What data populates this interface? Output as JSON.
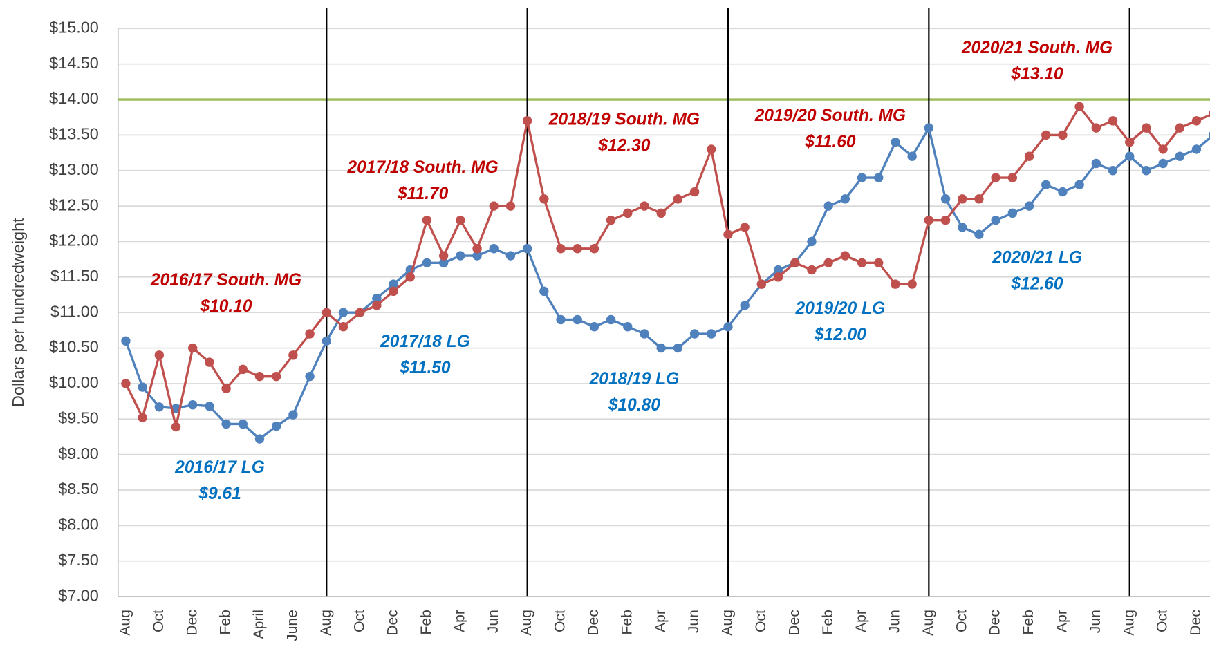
{
  "chart_data": {
    "type": "line",
    "y_label": "Dollars per hundredweight",
    "categories": [
      "Aug",
      null,
      "Oct",
      null,
      "Dec",
      null,
      "Feb",
      null,
      "April",
      null,
      "June",
      null,
      "Aug",
      null,
      "Oct",
      null,
      "Dec",
      null,
      "Feb",
      null,
      "Apr",
      null,
      "Jun",
      null,
      "Aug",
      null,
      "Oct",
      null,
      "Dec",
      null,
      "Feb",
      null,
      "Apr",
      null,
      "Jun",
      null,
      "Aug",
      null,
      "Oct",
      null,
      "Dec",
      null,
      "Feb",
      null,
      "Apr",
      null,
      "Jun",
      null,
      "Aug",
      null,
      "Oct",
      null,
      "Dec",
      null,
      "Feb",
      null,
      "Apr",
      null,
      "Jun",
      null,
      "Aug",
      null,
      "Oct",
      null,
      "Dec",
      null
    ],
    "series": [
      {
        "color": "#4f81bd",
        "values": [
          10.6,
          9.95,
          9.67,
          9.65,
          9.7,
          9.68,
          9.43,
          9.43,
          9.22,
          9.4,
          9.56,
          10.1,
          10.6,
          11.0,
          11.0,
          11.2,
          11.4,
          11.6,
          11.7,
          11.7,
          11.8,
          11.8,
          11.9,
          11.8,
          11.9,
          11.3,
          10.9,
          10.9,
          10.8,
          10.9,
          10.8,
          10.7,
          10.5,
          10.5,
          10.7,
          10.7,
          10.8,
          11.1,
          11.4,
          11.6,
          11.7,
          12.0,
          12.5,
          12.6,
          12.9,
          12.9,
          13.4,
          13.2,
          13.6,
          12.6,
          12.2,
          12.1,
          12.3,
          12.4,
          12.5,
          12.8,
          12.7,
          12.8,
          13.1,
          13.0,
          13.2,
          13.0,
          13.1,
          13.2,
          13.3,
          13.5
        ]
      },
      {
        "color": "#c0504d",
        "values": [
          10.0,
          9.52,
          10.4,
          9.39,
          10.5,
          10.3,
          9.93,
          10.2,
          10.1,
          10.1,
          10.4,
          10.7,
          11.0,
          10.8,
          11.0,
          11.1,
          11.3,
          11.5,
          12.3,
          11.8,
          12.3,
          11.9,
          12.5,
          12.5,
          13.7,
          12.6,
          11.9,
          11.9,
          11.9,
          12.3,
          12.4,
          12.5,
          12.4,
          12.6,
          12.7,
          13.3,
          12.1,
          12.2,
          11.4,
          11.5,
          11.7,
          11.6,
          11.7,
          11.8,
          11.7,
          11.7,
          11.4,
          11.4,
          12.3,
          12.3,
          12.6,
          12.6,
          12.9,
          12.9,
          13.2,
          13.5,
          13.5,
          13.9,
          13.6,
          13.7,
          13.4,
          13.6,
          13.3,
          13.6,
          13.7,
          13.8
        ]
      }
    ],
    "reference_line": {
      "value": 14.0,
      "color": "#9bbb59"
    },
    "ylim": [
      7,
      15
    ],
    "yticks": [
      {
        "value": 7,
        "label": "$7.00"
      },
      {
        "value": 7.5,
        "label": "$7.50"
      },
      {
        "value": 8,
        "label": "$8.00"
      },
      {
        "value": 8.5,
        "label": "$8.50"
      },
      {
        "value": 9,
        "label": "$9.00"
      },
      {
        "value": 9.5,
        "label": "$9.50"
      },
      {
        "value": 10,
        "label": "$10.00"
      },
      {
        "value": 10.5,
        "label": "$10.50"
      },
      {
        "value": 11,
        "label": "$11.00"
      },
      {
        "value": 11.5,
        "label": "$11.50"
      },
      {
        "value": 12,
        "label": "$12.00"
      },
      {
        "value": 12.5,
        "label": "$12.50"
      },
      {
        "value": 13,
        "label": "$13.00"
      },
      {
        "value": 13.5,
        "label": "$13.50"
      },
      {
        "value": 14,
        "label": "$14.00"
      },
      {
        "value": 14.5,
        "label": "$14.50"
      },
      {
        "value": 15,
        "label": "$15.00"
      }
    ],
    "grid": true,
    "annotations": [
      {
        "lines": [
          "2016/17 South. MG",
          "$10.10"
        ],
        "color": "#c00000"
      },
      {
        "lines": [
          "2016/17 LG",
          "$9.61"
        ],
        "color": "#0070c0"
      },
      {
        "lines": [
          "2017/18 South. MG",
          "$11.70"
        ],
        "color": "#c00000"
      },
      {
        "lines": [
          "2017/18 LG",
          "$11.50"
        ],
        "color": "#0070c0"
      },
      {
        "lines": [
          "2018/19 South. MG",
          "$12.30"
        ],
        "color": "#c00000"
      },
      {
        "lines": [
          "2018/19 LG",
          "$10.80"
        ],
        "color": "#0070c0"
      },
      {
        "lines": [
          "2019/20 South. MG",
          "$11.60"
        ],
        "color": "#c00000"
      },
      {
        "lines": [
          "2019/20 LG",
          "$12.00"
        ],
        "color": "#0070c0"
      },
      {
        "lines": [
          "2020/21 South. MG",
          "$13.10"
        ],
        "color": "#c00000"
      },
      {
        "lines": [
          "2020/21 LG",
          "$12.60"
        ],
        "color": "#0070c0"
      }
    ]
  }
}
